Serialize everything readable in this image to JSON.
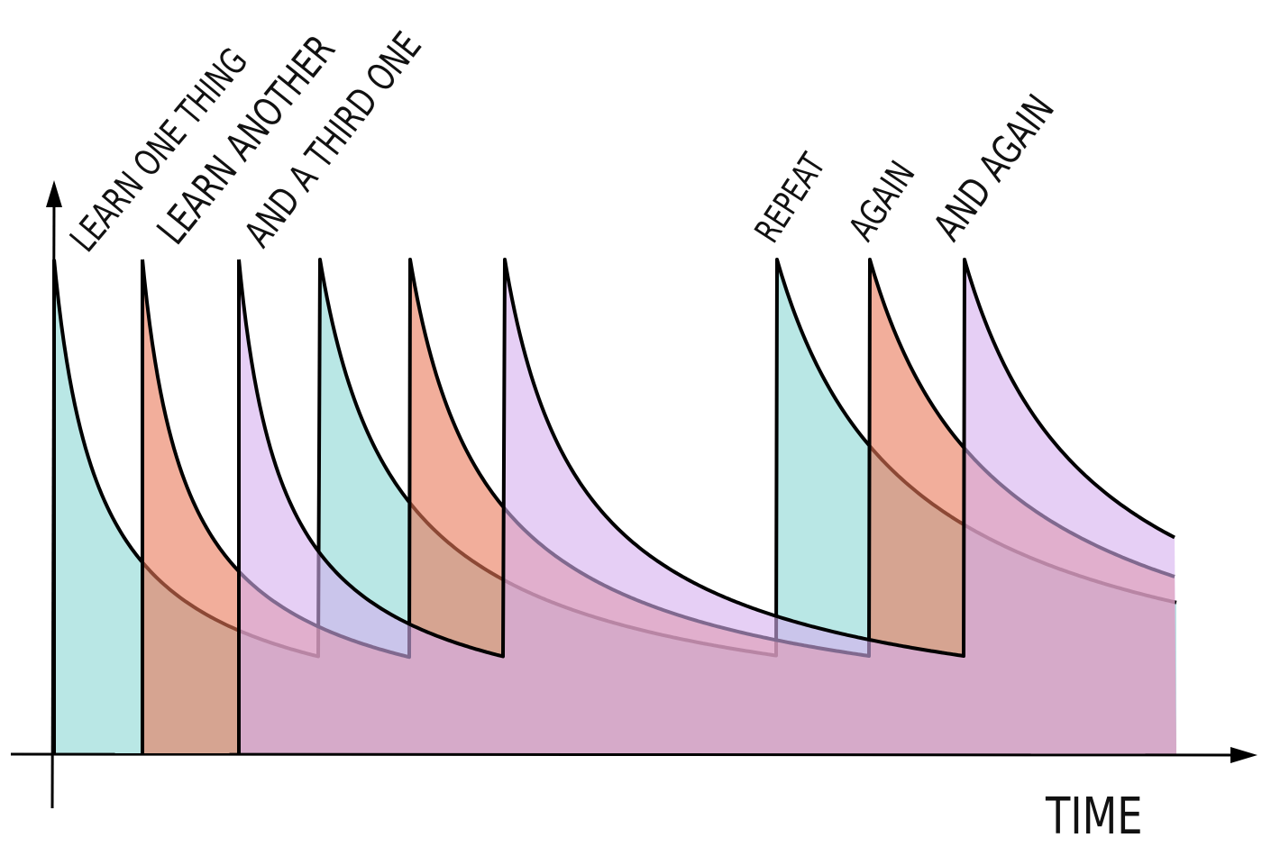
{
  "labels": {
    "learn_one": "LEARN ONE THING",
    "learn_another": "LEARN ANOTHER",
    "third_one": "AND A THIRD ONE",
    "repeat": "REPEAT",
    "again": "AGAIN",
    "and_again": "AND AGAIN"
  },
  "axis": {
    "x_label": "TIME"
  },
  "colors": {
    "series1": "#8ad7d4",
    "series2": "#e97858",
    "series3": "#d5afee",
    "stroke": "#000000"
  }
}
